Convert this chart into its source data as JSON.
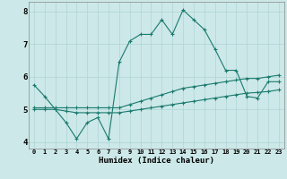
{
  "xlabel": "Humidex (Indice chaleur)",
  "bg_color": "#cce8e8",
  "grid_color": "#b0d4d4",
  "line_color": "#1a7a6e",
  "xlim": [
    -0.5,
    23.5
  ],
  "ylim": [
    3.8,
    8.3
  ],
  "xticks": [
    0,
    1,
    2,
    3,
    4,
    5,
    6,
    7,
    8,
    9,
    10,
    11,
    12,
    13,
    14,
    15,
    16,
    17,
    18,
    19,
    20,
    21,
    22,
    23
  ],
  "yticks": [
    4,
    5,
    6,
    7,
    8
  ],
  "series1_x": [
    0,
    1,
    2,
    3,
    4,
    5,
    6,
    7,
    8,
    9,
    10,
    11,
    12,
    13,
    14,
    15,
    16,
    17,
    18,
    19,
    20,
    21,
    22,
    23
  ],
  "series1_y": [
    5.75,
    5.4,
    5.0,
    4.6,
    4.1,
    4.6,
    4.75,
    4.1,
    6.45,
    7.1,
    7.3,
    7.3,
    7.75,
    7.3,
    8.05,
    7.75,
    7.45,
    6.85,
    6.2,
    6.2,
    5.4,
    5.35,
    5.85,
    5.85
  ],
  "series2_x": [
    0,
    1,
    2,
    3,
    4,
    5,
    6,
    7,
    8,
    9,
    10,
    11,
    12,
    13,
    14,
    15,
    16,
    17,
    18,
    19,
    20,
    21,
    22,
    23
  ],
  "series2_y": [
    5.05,
    5.05,
    5.05,
    5.05,
    5.05,
    5.05,
    5.05,
    5.05,
    5.05,
    5.15,
    5.25,
    5.35,
    5.45,
    5.55,
    5.65,
    5.7,
    5.75,
    5.8,
    5.85,
    5.9,
    5.95,
    5.95,
    6.0,
    6.05
  ],
  "series3_x": [
    0,
    1,
    2,
    3,
    4,
    5,
    6,
    7,
    8,
    9,
    10,
    11,
    12,
    13,
    14,
    15,
    16,
    17,
    18,
    19,
    20,
    21,
    22,
    23
  ],
  "series3_y": [
    5.0,
    5.0,
    5.0,
    4.95,
    4.9,
    4.9,
    4.9,
    4.9,
    4.9,
    4.95,
    5.0,
    5.05,
    5.1,
    5.15,
    5.2,
    5.25,
    5.3,
    5.35,
    5.4,
    5.45,
    5.5,
    5.52,
    5.55,
    5.6
  ]
}
